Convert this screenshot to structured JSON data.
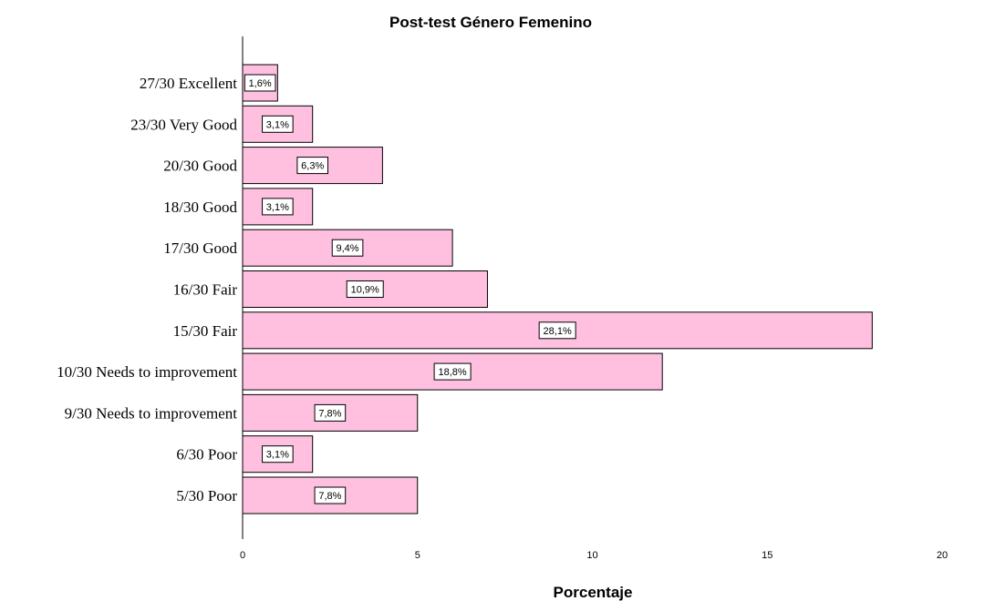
{
  "chart_data": {
    "type": "bar",
    "orientation": "horizontal",
    "title": "Post-test Género Femenino",
    "xlabel": "Porcentaje",
    "ylabel": "",
    "categories": [
      "27/30 Excellent",
      "23/30 Very Good",
      "20/30 Good",
      "18/30 Good",
      "17/30 Good",
      "16/30 Fair",
      "15/30 Fair",
      "10/30 Needs to improvement",
      "9/30 Needs to improvement",
      "6/30 Poor",
      "5/30 Poor"
    ],
    "values": [
      1,
      2,
      4,
      2,
      6,
      7,
      18,
      12,
      5,
      2,
      5
    ],
    "data_labels": [
      "1,6%",
      "3,1%",
      "6,3%",
      "3,1%",
      "9,4%",
      "10,9%",
      "28,1%",
      "18,8%",
      "7,8%",
      "3,1%",
      "7,8%"
    ],
    "xlim": [
      0,
      22
    ],
    "xticks": [
      0,
      5,
      10,
      15,
      20
    ],
    "bar_color": "#ffc0e0",
    "grid": false,
    "legend": "none"
  }
}
